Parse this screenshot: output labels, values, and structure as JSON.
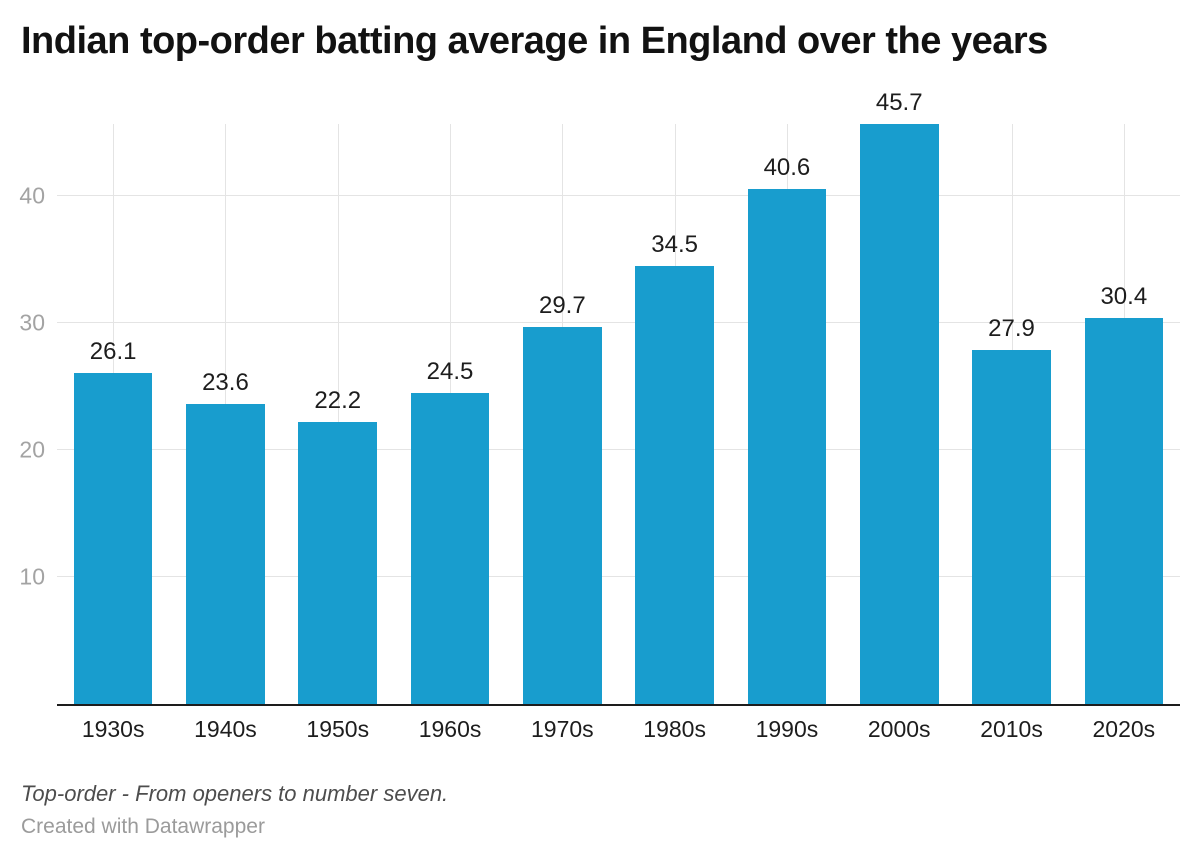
{
  "header": {
    "title": "Indian top-order batting average in England over the years"
  },
  "footer": {
    "note": "Top-order - From openers to number seven.",
    "attribution": "Created with Datawrapper"
  },
  "chart_data": {
    "type": "bar",
    "title": "Indian top-order batting average in England over the years",
    "categories": [
      "1930s",
      "1940s",
      "1950s",
      "1960s",
      "1970s",
      "1980s",
      "1990s",
      "2000s",
      "2010s",
      "2020s"
    ],
    "values": [
      26.1,
      23.6,
      22.2,
      24.5,
      29.7,
      34.5,
      40.6,
      45.7,
      27.9,
      30.4
    ],
    "xlabel": "",
    "ylabel": "",
    "ylim": [
      0,
      45.7
    ],
    "yticks": [
      10,
      20,
      30,
      40
    ],
    "grid": true,
    "legend": false,
    "value_labels": true,
    "colors": {
      "bar": "#189dce",
      "grid": "#e4e4e4",
      "tick_label": "#a3a3a3",
      "baseline": "#1d1d1d",
      "value_label": "#1d1d1d",
      "category_label": "#1d1d1d"
    }
  }
}
